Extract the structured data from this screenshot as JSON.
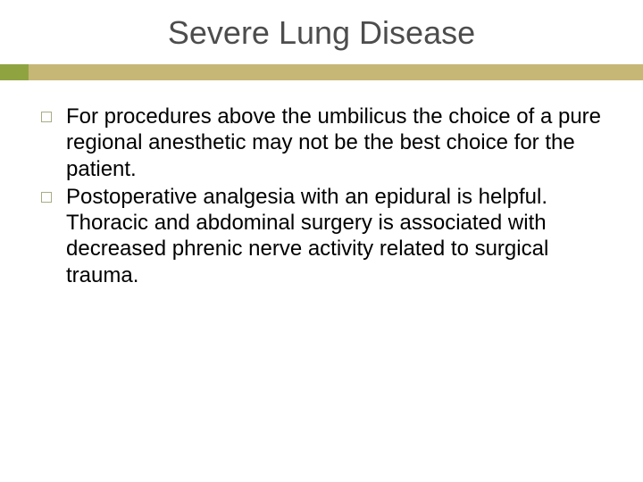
{
  "slide": {
    "title": "Severe Lung Disease",
    "bullets": [
      "For procedures above the umbilicus the choice of a pure regional anesthetic may not be the best choice for the patient.",
      "Postoperative analgesia with an epidural is helpful.  Thoracic and abdominal surgery is associated with decreased phrenic nerve activity related to surgical trauma."
    ]
  },
  "style": {
    "background_color": "#ffffff",
    "title_color": "#4d4d4d",
    "title_fontsize": 36,
    "title_fontweight": 400,
    "accent_block_color": "#8fa441",
    "accent_line_color": "#c7b776",
    "accent_block_width": 32,
    "accent_height": 18,
    "bullet_border_color": "#a9ab84",
    "bullet_size": 12,
    "body_fontsize": 24,
    "body_color": "#000000",
    "body_lineheight": 1.22,
    "font_family": "Arial"
  }
}
